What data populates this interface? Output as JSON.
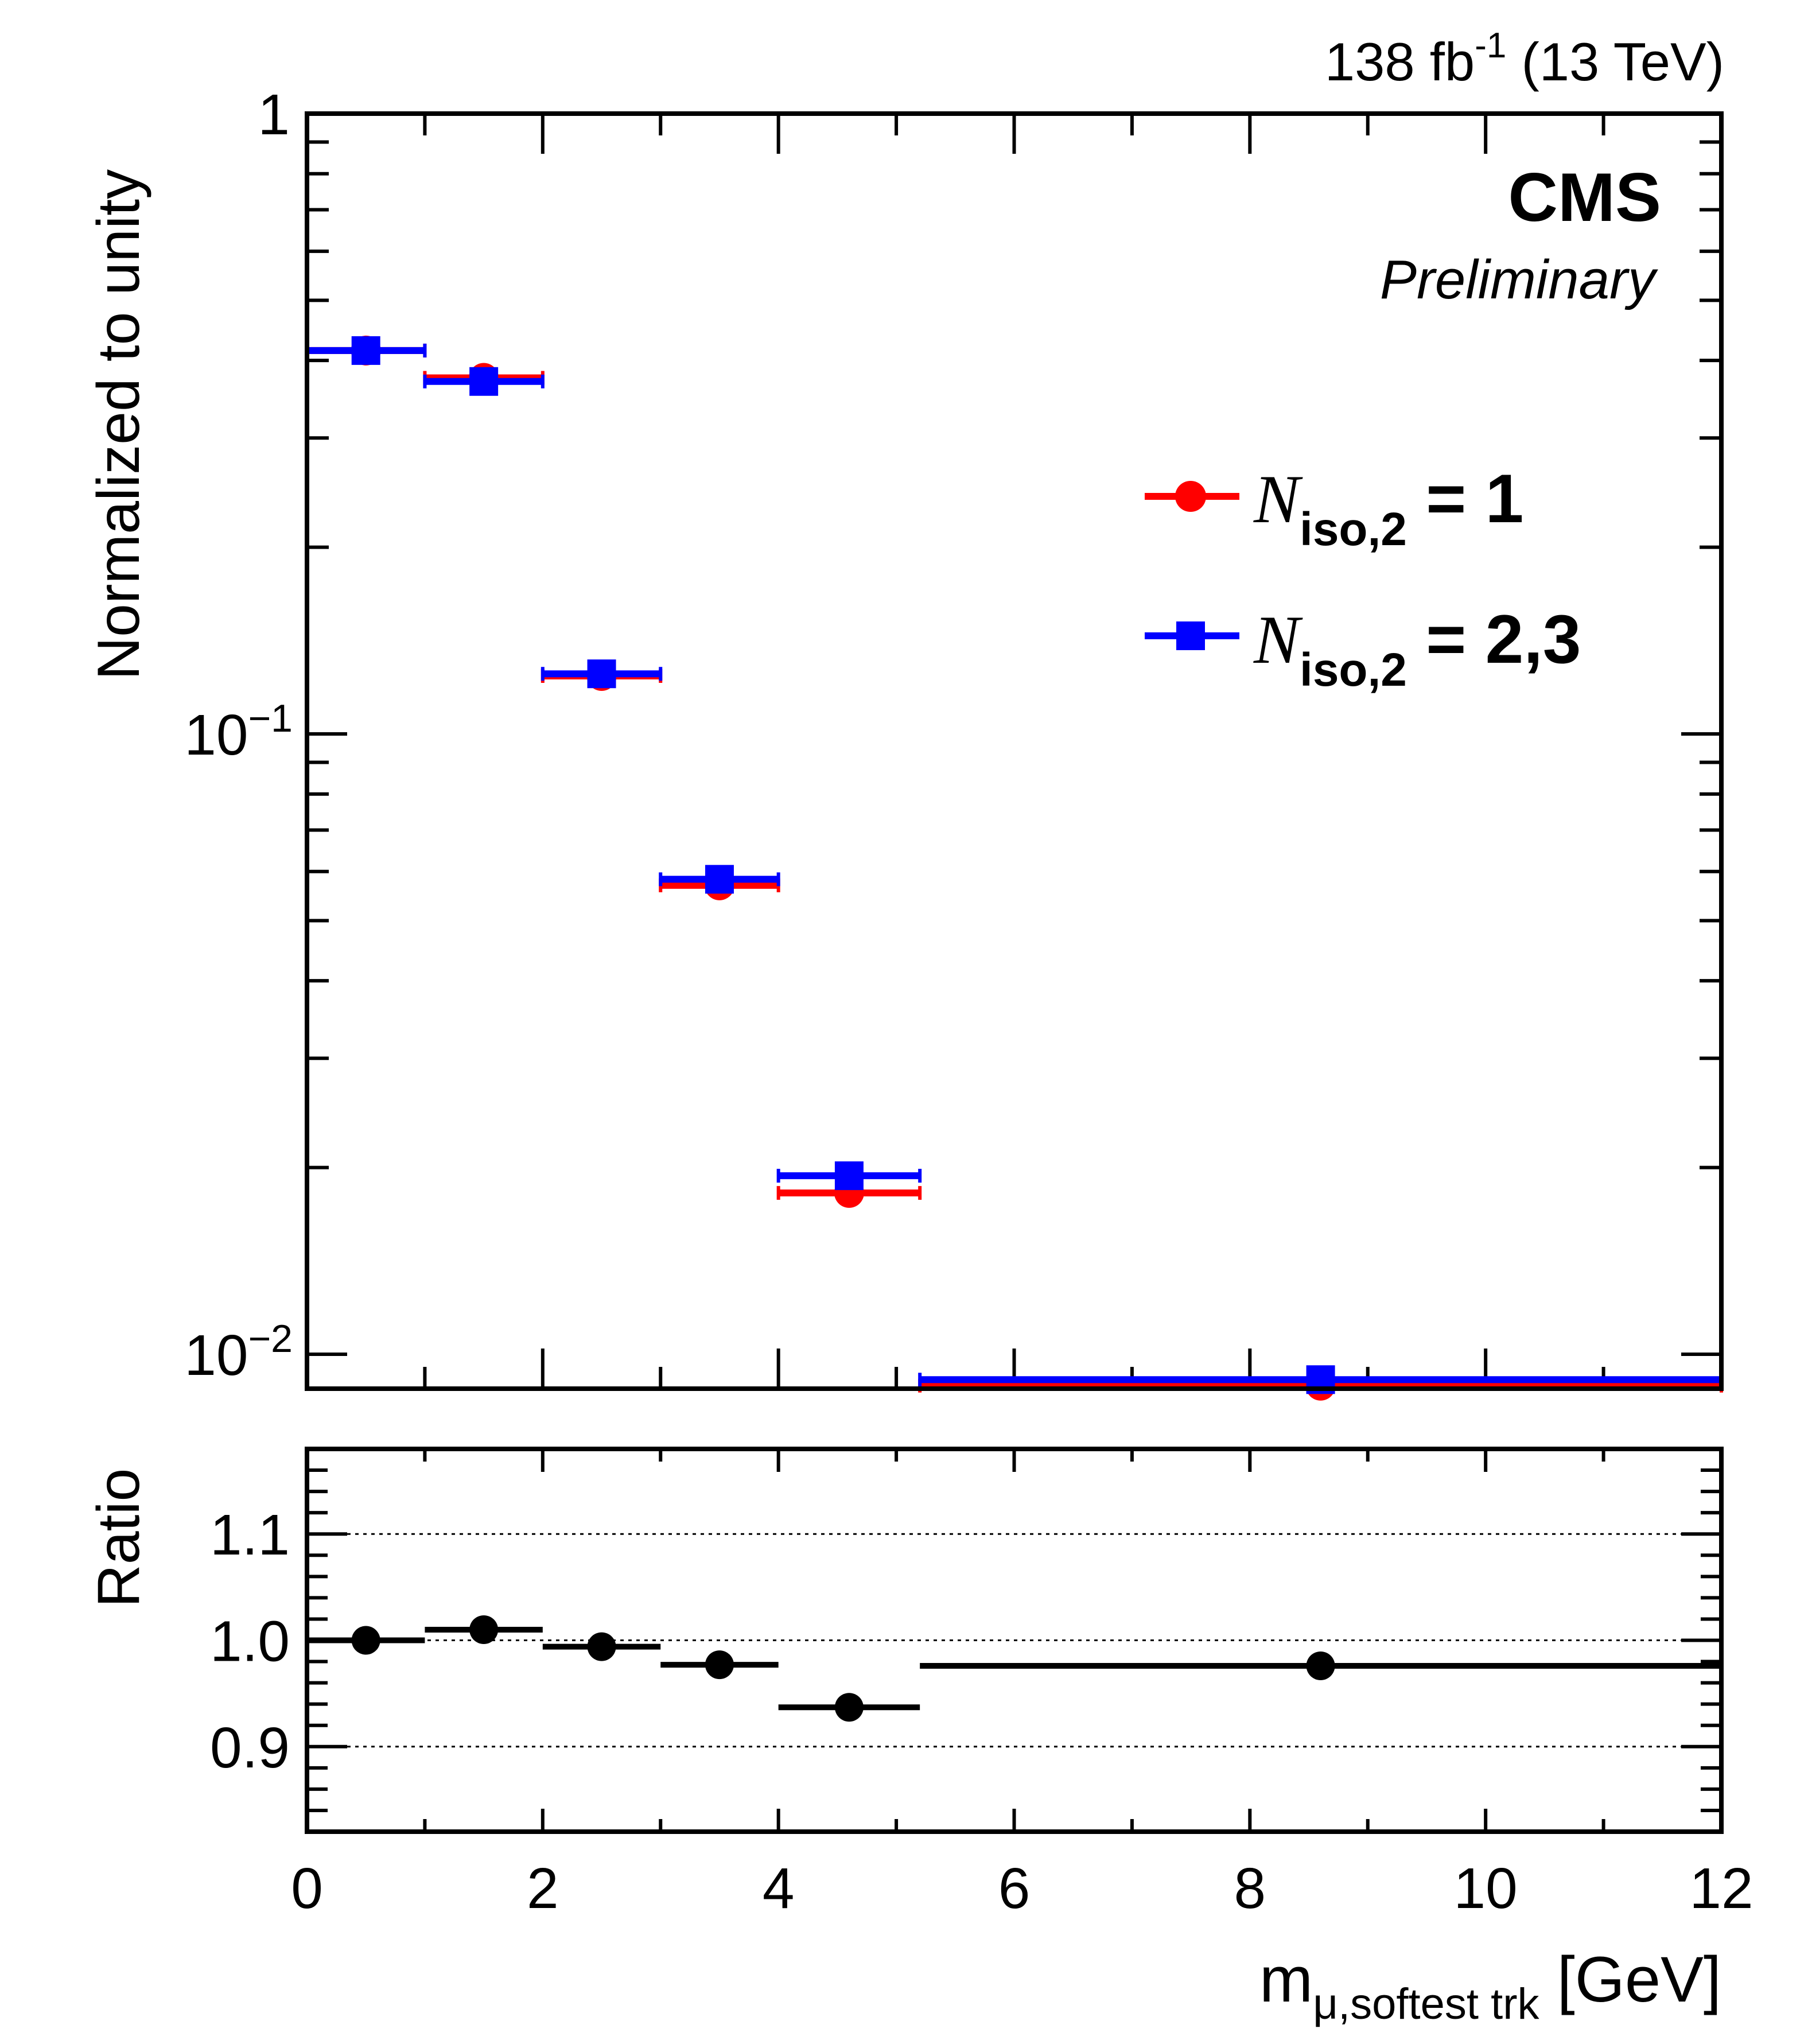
{
  "header": {
    "lumi_value": "138 fb",
    "lumi_sup": "-1",
    "energy": " (13 TeV)",
    "experiment": "CMS",
    "status": "Preliminary"
  },
  "chart_data": [
    {
      "type": "scatter",
      "panel": "main",
      "ylabel": "Normalized to unity",
      "yscale": "log",
      "ylim": [
        0.0088,
        1
      ],
      "xlim": [
        0,
        12
      ],
      "y_ticks": [
        {
          "value": 1,
          "label": "1",
          "sup": ""
        },
        {
          "value": 0.1,
          "label": "10",
          "sup": "−1"
        },
        {
          "value": 0.01,
          "label": "10",
          "sup": "−2"
        }
      ],
      "legend": [
        {
          "symbol": "N",
          "subscript": "iso,2",
          "suffix": " = 1",
          "color": "#ff0000",
          "marker": "circle"
        },
        {
          "symbol": "N",
          "subscript": "iso,2",
          "suffix": " = 2,3",
          "color": "#0000ff",
          "marker": "square"
        }
      ],
      "legend_position": "top-right",
      "series": [
        {
          "name": "N_iso,2 = 1",
          "color": "#ff0000",
          "marker": "circle",
          "x": [
            0.5,
            1.5,
            2.5,
            3.5,
            4.6,
            8.6
          ],
          "x_lo": [
            0,
            1,
            2,
            3,
            4,
            5.2
          ],
          "x_hi": [
            1,
            2,
            3,
            4,
            5.2,
            12
          ],
          "y": [
            0.415,
            0.375,
            0.124,
            0.057,
            0.0182,
            0.0089
          ]
        },
        {
          "name": "N_iso,2 = 2,3",
          "color": "#0000ff",
          "marker": "square",
          "x": [
            0.5,
            1.5,
            2.5,
            3.5,
            4.6,
            8.6
          ],
          "x_lo": [
            0,
            1,
            2,
            3,
            4,
            5.2
          ],
          "x_hi": [
            1,
            2,
            3,
            4,
            5.2,
            12
          ],
          "y": [
            0.415,
            0.37,
            0.125,
            0.0583,
            0.0194,
            0.0091
          ]
        }
      ]
    },
    {
      "type": "scatter",
      "panel": "ratio",
      "ylabel": "Ratio",
      "ylim": [
        0.82,
        1.18
      ],
      "xlim": [
        0,
        12
      ],
      "y_ticks": [
        {
          "value": 1.1,
          "label": "1.1"
        },
        {
          "value": 1.0,
          "label": "1.0"
        },
        {
          "value": 0.9,
          "label": "0.9"
        }
      ],
      "gridlines": [
        0.9,
        1.0,
        1.1
      ],
      "x_ticks": [
        {
          "value": 0,
          "label": "0"
        },
        {
          "value": 2,
          "label": "2"
        },
        {
          "value": 4,
          "label": "4"
        },
        {
          "value": 6,
          "label": "6"
        },
        {
          "value": 8,
          "label": "8"
        },
        {
          "value": 10,
          "label": "10"
        },
        {
          "value": 12,
          "label": "12"
        }
      ],
      "xlabel": "m",
      "xlabel_sub": "μ,softest trk",
      "xlabel_unit": " [GeV]",
      "series": [
        {
          "name": "Ratio",
          "color": "#000000",
          "marker": "circle",
          "x": [
            0.5,
            1.5,
            2.5,
            3.5,
            4.6,
            8.6
          ],
          "x_lo": [
            0,
            1,
            2,
            3,
            4,
            5.2
          ],
          "x_hi": [
            1,
            2,
            3,
            4,
            5.2,
            12
          ],
          "y": [
            1.0,
            1.01,
            0.994,
            0.977,
            0.937,
            0.976
          ],
          "y_err": [
            0.002,
            0.002,
            0.002,
            0.003,
            0.004,
            0.013
          ]
        }
      ]
    }
  ]
}
